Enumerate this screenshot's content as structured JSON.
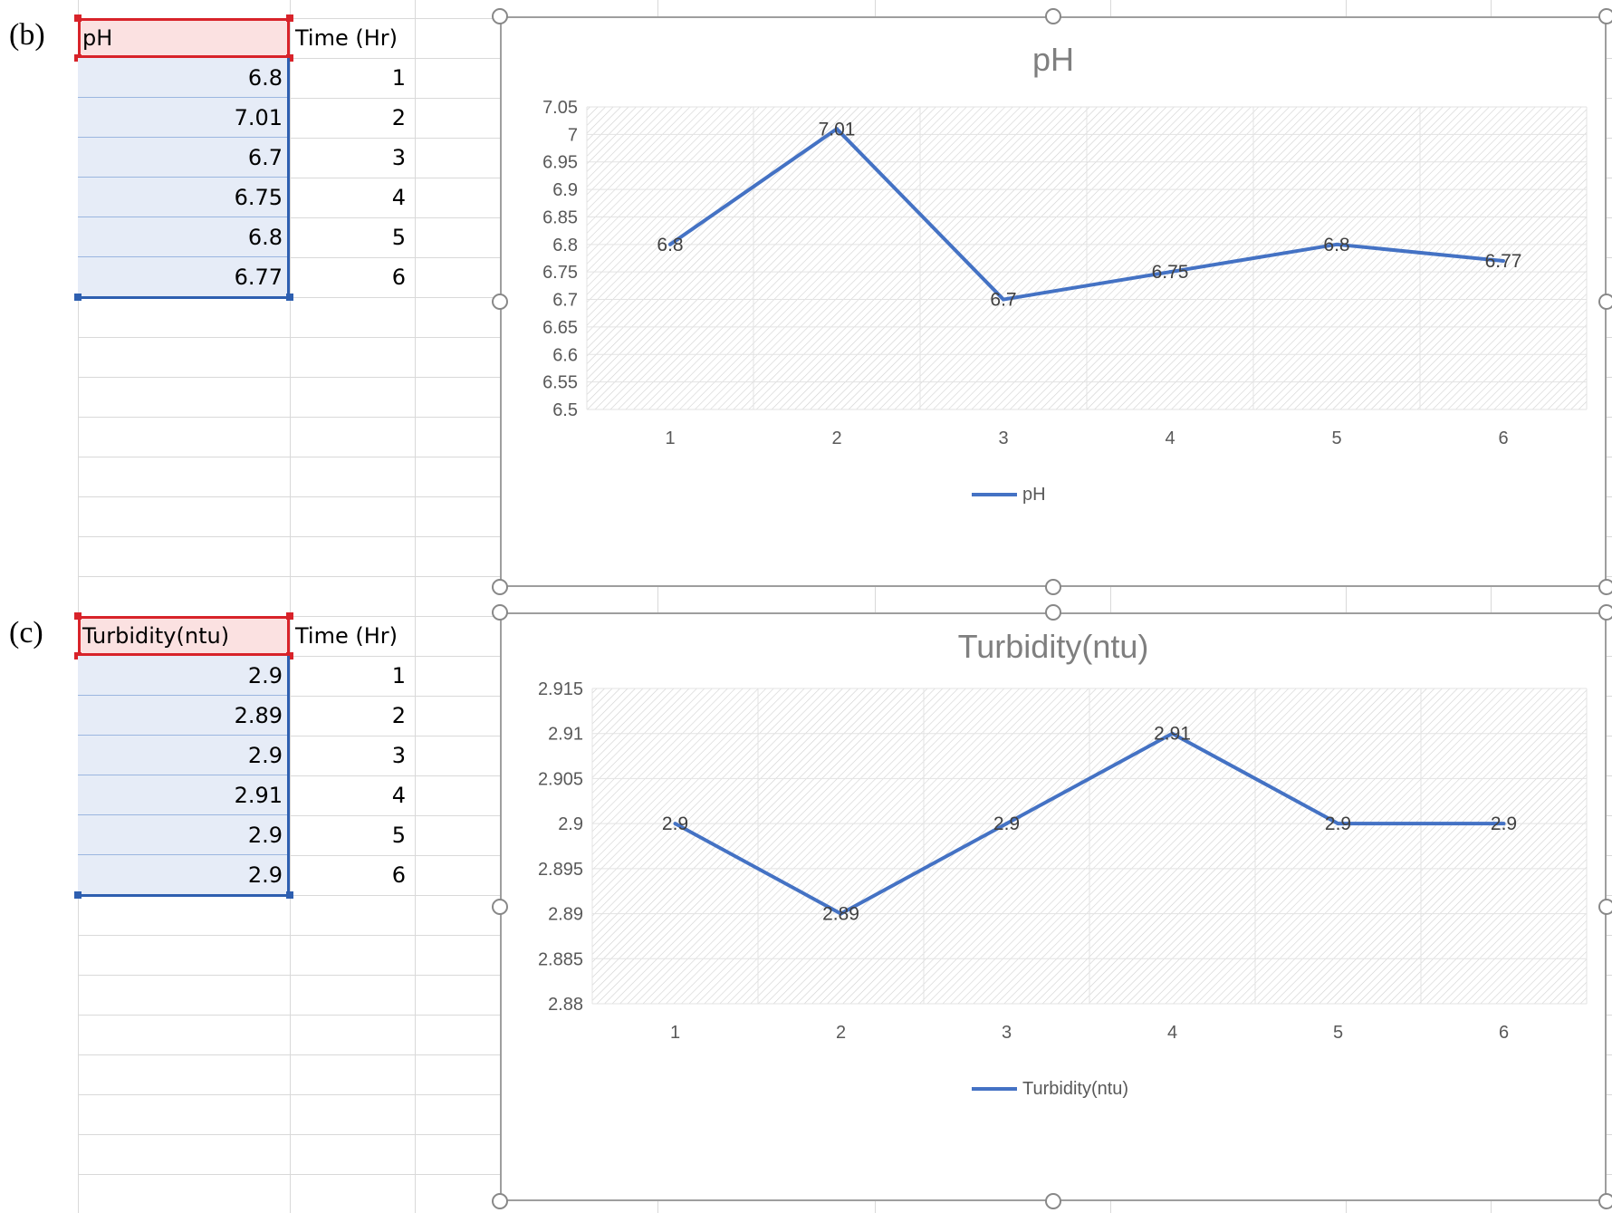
{
  "panels": [
    {
      "label": "(b)",
      "table": {
        "headers": [
          "pH",
          "Time (Hr)"
        ],
        "rows": [
          [
            "6.8",
            "1"
          ],
          [
            "7.01",
            "2"
          ],
          [
            "6.7",
            "3"
          ],
          [
            "6.75",
            "4"
          ],
          [
            "6.8",
            "5"
          ],
          [
            "6.77",
            "6"
          ]
        ]
      }
    },
    {
      "label": "(c)",
      "table": {
        "headers": [
          "Turbidity(ntu)",
          "Time (Hr)"
        ],
        "rows": [
          [
            "2.9",
            "1"
          ],
          [
            "2.89",
            "2"
          ],
          [
            "2.9",
            "3"
          ],
          [
            "2.91",
            "4"
          ],
          [
            "2.9",
            "5"
          ],
          [
            "2.9",
            "6"
          ]
        ]
      }
    }
  ],
  "colors": {
    "line": "#4472c4",
    "selection": "#2e5fb0",
    "header_border": "#d8232a",
    "header_fill": "#fbe1e1",
    "cell_fill": "#e6ecf7"
  },
  "chart_data": [
    {
      "type": "line",
      "title": "pH",
      "xlabel": "",
      "ylabel": "",
      "categories": [
        "1",
        "2",
        "3",
        "4",
        "5",
        "6"
      ],
      "series": [
        {
          "name": "pH",
          "values": [
            6.8,
            7.01,
            6.7,
            6.75,
            6.8,
            6.77
          ]
        }
      ],
      "data_labels": [
        "6.8",
        "7.01",
        "6.7",
        "6.75",
        "6.8",
        "6.77"
      ],
      "ylim": [
        6.5,
        7.05
      ],
      "yticks": [
        "6.5",
        "6.55",
        "6.6",
        "6.65",
        "6.7",
        "6.75",
        "6.8",
        "6.85",
        "6.9",
        "6.95",
        "7",
        "7.05"
      ],
      "grid": true,
      "legend": "bottom"
    },
    {
      "type": "line",
      "title": "Turbidity(ntu)",
      "xlabel": "",
      "ylabel": "",
      "categories": [
        "1",
        "2",
        "3",
        "4",
        "5",
        "6"
      ],
      "series": [
        {
          "name": "Turbidity(ntu)",
          "values": [
            2.9,
            2.89,
            2.9,
            2.91,
            2.9,
            2.9
          ]
        }
      ],
      "data_labels": [
        "2.9",
        "2.89",
        "2.9",
        "2.91",
        "2.9",
        "2.9"
      ],
      "ylim": [
        2.88,
        2.915
      ],
      "yticks": [
        "2.88",
        "2.885",
        "2.89",
        "2.895",
        "2.9",
        "2.905",
        "2.91",
        "2.915"
      ],
      "grid": true,
      "legend": "bottom"
    }
  ]
}
